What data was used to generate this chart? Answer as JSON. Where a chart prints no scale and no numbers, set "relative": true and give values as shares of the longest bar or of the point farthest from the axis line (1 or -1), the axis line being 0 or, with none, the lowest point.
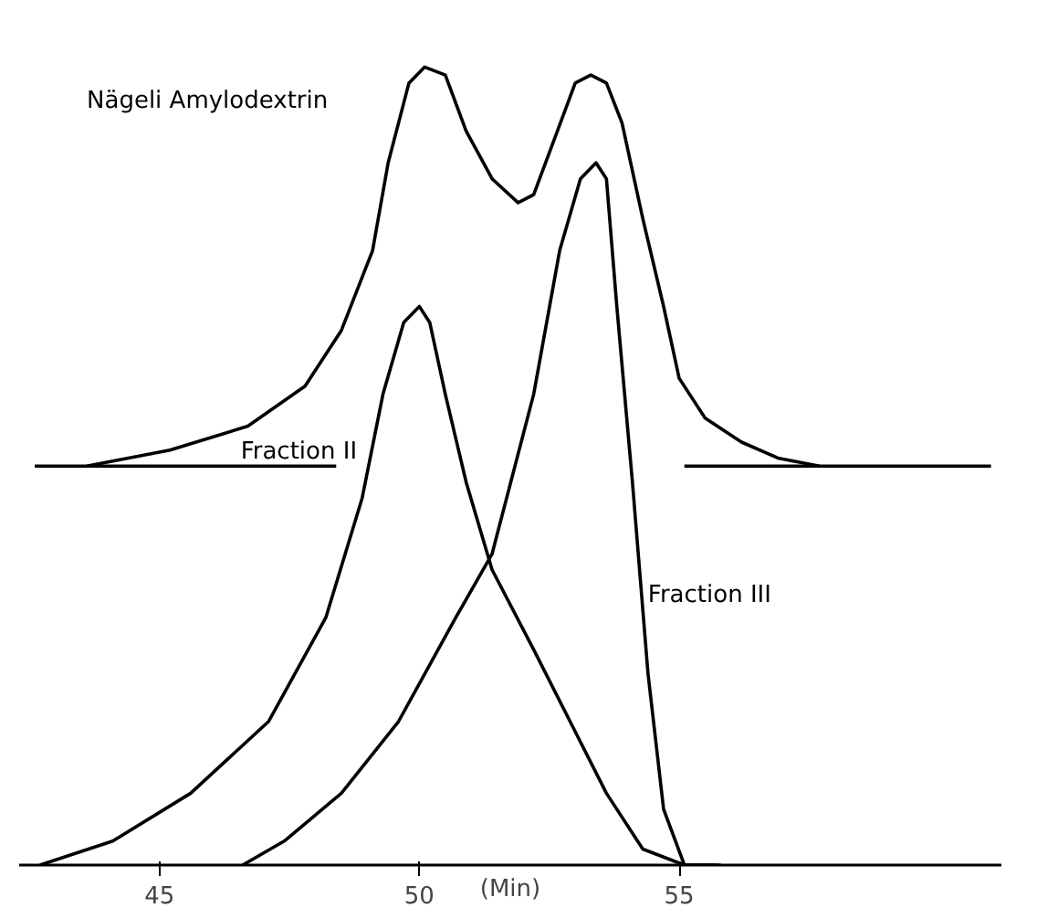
{
  "chart_data": {
    "type": "line",
    "relative": true,
    "xlabel": "(Min)",
    "xlim": [
      42.3,
      61.2
    ],
    "xticks": [
      45,
      50,
      55
    ],
    "grid": false,
    "legend": false,
    "marker": "none",
    "line_style": "solid",
    "series": [
      {
        "name": "Nägeli Amylodextrin",
        "color": "#000000",
        "x": [
          43.6,
          45.2,
          46.7,
          47.8,
          48.5,
          49.1,
          49.4,
          49.8,
          50.1,
          50.5,
          50.9,
          51.4,
          51.9,
          52.2,
          52.6,
          53.0,
          53.3,
          53.6,
          53.9,
          54.3,
          54.7,
          55.0,
          55.5,
          56.2,
          56.9,
          57.7
        ],
        "values": [
          0.5,
          0.52,
          0.55,
          0.6,
          0.67,
          0.77,
          0.88,
          0.98,
          1.0,
          0.99,
          0.92,
          0.86,
          0.83,
          0.84,
          0.91,
          0.98,
          0.99,
          0.98,
          0.93,
          0.81,
          0.7,
          0.61,
          0.56,
          0.53,
          0.51,
          0.5
        ]
      },
      {
        "color": "#000000",
        "x": [
          42.6,
          48.4
        ],
        "values": [
          0.5,
          0.5
        ]
      },
      {
        "color": "#000000",
        "x": [
          55.1,
          61.0
        ],
        "values": [
          0.5,
          0.5
        ]
      },
      {
        "name": "Fraction II",
        "color": "#000000",
        "x": [
          42.7,
          44.1,
          45.6,
          47.1,
          48.2,
          48.9,
          49.3,
          49.7,
          50.0,
          50.2,
          50.5,
          50.9,
          51.4,
          52.2,
          52.9,
          53.6,
          54.3,
          55.1,
          55.8
        ],
        "values": [
          0.0,
          0.03,
          0.09,
          0.18,
          0.31,
          0.46,
          0.59,
          0.68,
          0.7,
          0.68,
          0.59,
          0.48,
          0.37,
          0.27,
          0.18,
          0.09,
          0.02,
          0.0,
          0.0
        ]
      },
      {
        "name": "Fraction III",
        "color": "#000000",
        "x": [
          46.6,
          47.4,
          48.5,
          49.6,
          50.7,
          51.4,
          52.2,
          52.7,
          53.1,
          53.4,
          53.6,
          53.8,
          54.1,
          54.4,
          54.7,
          55.1,
          55.7
        ],
        "values": [
          0.0,
          0.03,
          0.09,
          0.18,
          0.31,
          0.39,
          0.59,
          0.77,
          0.86,
          0.88,
          0.86,
          0.7,
          0.48,
          0.24,
          0.07,
          0.0,
          0.0
        ]
      }
    ]
  }
}
